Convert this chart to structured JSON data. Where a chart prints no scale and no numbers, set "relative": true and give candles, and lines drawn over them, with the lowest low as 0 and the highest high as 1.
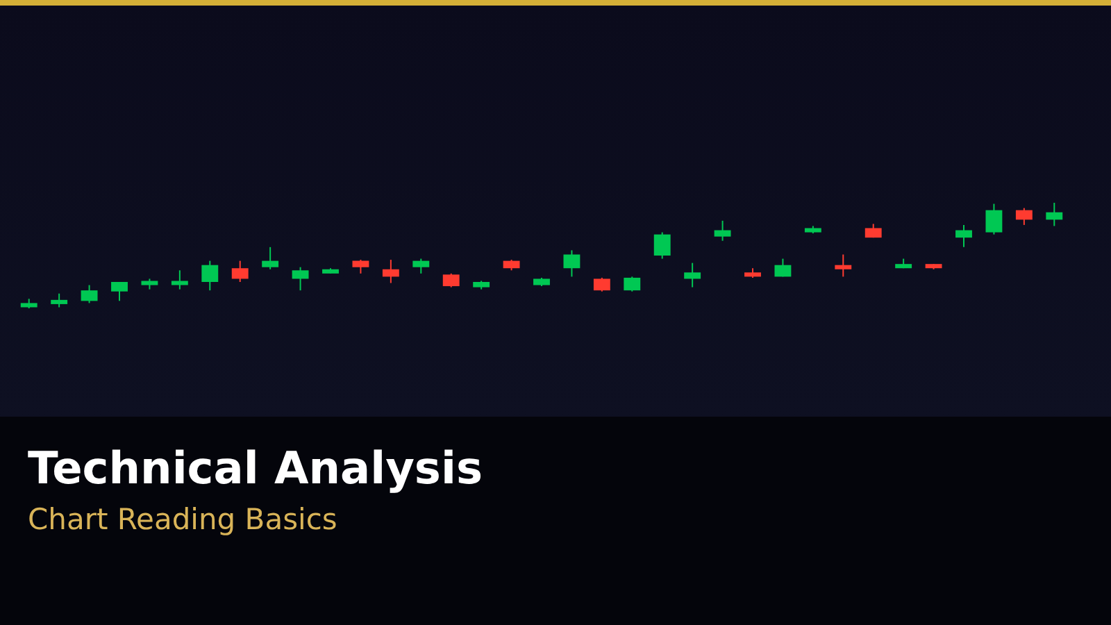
{
  "chart_data": {
    "type": "candlestick",
    "title": "Technical Analysis",
    "subtitle": "Chart Reading Basics",
    "relative": true,
    "categories": [
      null,
      null,
      null,
      null,
      null,
      null,
      null,
      null,
      null,
      null,
      null,
      null,
      null,
      null,
      null,
      null,
      null,
      null,
      null,
      null,
      null,
      null,
      null,
      null,
      null,
      null,
      null,
      null,
      null,
      null,
      null,
      null,
      null,
      null,
      null
    ],
    "ohlc": [
      [
        0.01,
        0.09,
        0,
        0.05
      ],
      [
        0.04,
        0.14,
        0.01,
        0.08
      ],
      [
        0.07,
        0.22,
        0.05,
        0.17
      ],
      [
        0.16,
        0.25,
        0.07,
        0.25
      ],
      [
        0.22,
        0.28,
        0.18,
        0.26
      ],
      [
        0.22,
        0.36,
        0.18,
        0.26
      ],
      [
        0.25,
        0.45,
        0.17,
        0.41
      ],
      [
        0.38,
        0.45,
        0.25,
        0.28
      ],
      [
        0.39,
        0.58,
        0.37,
        0.45
      ],
      [
        0.28,
        0.39,
        0.17,
        0.36
      ],
      [
        0.33,
        0.38,
        0.33,
        0.37
      ],
      [
        0.45,
        0.46,
        0.33,
        0.39
      ],
      [
        0.37,
        0.46,
        0.24,
        0.3
      ],
      [
        0.39,
        0.47,
        0.33,
        0.45
      ],
      [
        0.32,
        0.33,
        0.2,
        0.21
      ],
      [
        0.2,
        0.26,
        0.18,
        0.25
      ],
      [
        0.45,
        0.46,
        0.36,
        0.38
      ],
      [
        0.22,
        0.29,
        0.21,
        0.28
      ],
      [
        0.38,
        0.55,
        0.3,
        0.51
      ],
      [
        0.28,
        0.29,
        0.16,
        0.17
      ],
      [
        0.17,
        0.3,
        0.16,
        0.29
      ],
      [
        0.5,
        0.72,
        0.47,
        0.7
      ],
      [
        0.28,
        0.43,
        0.2,
        0.34
      ],
      [
        0.68,
        0.83,
        0.64,
        0.74
      ],
      [
        0.34,
        0.38,
        0.29,
        0.3
      ],
      [
        0.3,
        0.47,
        0.3,
        0.41
      ],
      [
        0.72,
        0.78,
        0.71,
        0.76
      ],
      [
        0.41,
        0.51,
        0.3,
        0.37
      ],
      [
        0.76,
        0.8,
        0.67,
        0.67
      ],
      [
        0.38,
        0.47,
        0.38,
        0.42
      ],
      [
        0.42,
        0.42,
        0.37,
        0.38
      ],
      [
        0.67,
        0.79,
        0.58,
        0.74
      ],
      [
        0.72,
        0.99,
        0.7,
        0.93
      ],
      [
        0.93,
        0.95,
        0.79,
        0.84
      ],
      [
        0.84,
        1,
        0.78,
        0.91
      ]
    ],
    "colors": [
      "#00c853",
      "#00c853",
      "#00c853",
      "#00c853",
      "#00c853",
      "#00c853",
      "#00c853",
      "#ff3b30",
      "#00c853",
      "#00c853",
      "#00c853",
      "#ff3b30",
      "#ff3b30",
      "#00c853",
      "#ff3b30",
      "#00c853",
      "#ff3b30",
      "#00c853",
      "#00c853",
      "#ff3b30",
      "#00c853",
      "#00c853",
      "#00c853",
      "#00c853",
      "#ff3b30",
      "#00c853",
      "#00c853",
      "#ff3b30",
      "#ff3b30",
      "#00c853",
      "#ff3b30",
      "#00c853",
      "#00c853",
      "#ff3b30",
      "#00c853"
    ]
  }
}
